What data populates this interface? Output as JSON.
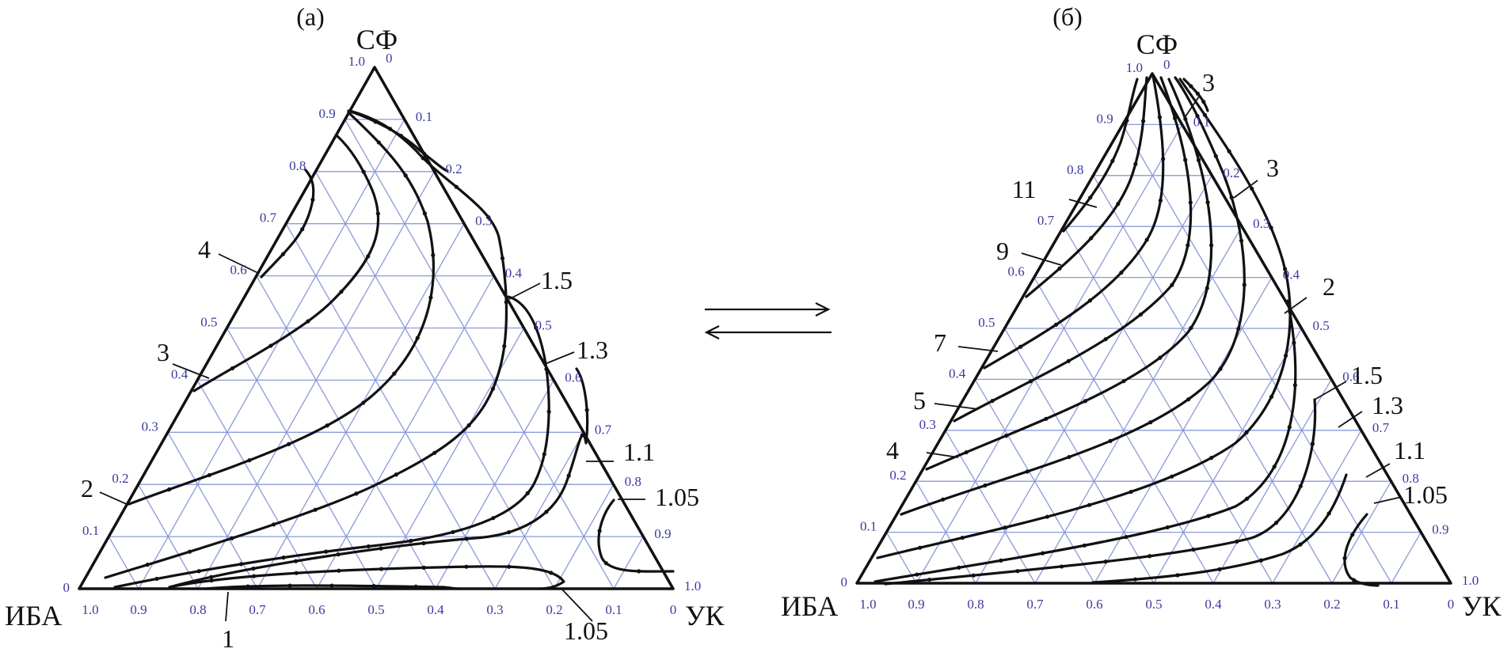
{
  "arrows": "equilibrium-arrows",
  "panels": [
    {
      "id": "a",
      "label": "(а)",
      "vertices": {
        "top": "СФ",
        "left": "ИБА",
        "right": "УК"
      },
      "left_ticks": [
        "0",
        "0.1",
        "0.2",
        "0.3",
        "0.4",
        "0.5",
        "0.6",
        "0.7",
        "0.8",
        "0.9",
        "1.0"
      ],
      "right_ticks": [
        "0",
        "0.1",
        "0.2",
        "0.3",
        "0.4",
        "0.5",
        "0.6",
        "0.7",
        "0.8",
        "0.9",
        "1.0"
      ],
      "bottom_ticks": [
        "1.0",
        "0.9",
        "0.8",
        "0.7",
        "0.6",
        "0.5",
        "0.4",
        "0.3",
        "0.2",
        "0.1",
        "0"
      ],
      "curve_labels": [
        "4",
        "3",
        "2",
        "1.5",
        "1.3",
        "1.1",
        "1.05",
        "1",
        "1.05"
      ]
    },
    {
      "id": "b",
      "label": "(б)",
      "vertices": {
        "top": "СФ",
        "left": "ИБА",
        "right": "УК"
      },
      "left_ticks": [
        "0",
        "0.1",
        "0.2",
        "0.3",
        "0.4",
        "0.5",
        "0.6",
        "0.7",
        "0.8",
        "0.9",
        "1.0"
      ],
      "right_ticks": [
        "0",
        "0.1",
        "0.2",
        "0.3",
        "0.4",
        "0.5",
        "0.6",
        "0.7",
        "0.8",
        "0.9",
        "1.0"
      ],
      "bottom_ticks": [
        "1.0",
        "0.9",
        "0.8",
        "0.7",
        "0.6",
        "0.5",
        "0.4",
        "0.3",
        "0.2",
        "0.1",
        "0"
      ],
      "curve_labels": [
        "3",
        "3",
        "2",
        "11",
        "9",
        "7",
        "5",
        "4",
        "1.5",
        "1.3",
        "1.1",
        "1.05"
      ]
    }
  ]
}
